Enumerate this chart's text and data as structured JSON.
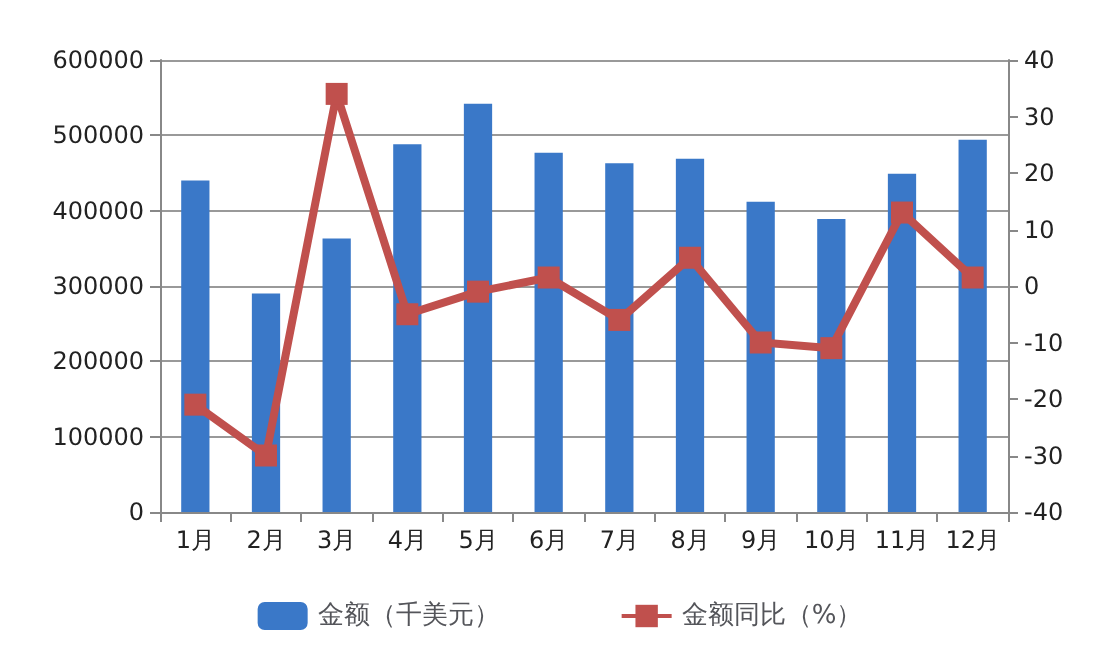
{
  "chart_data": {
    "type": "bar",
    "categories": [
      "1月",
      "2月",
      "3月",
      "4月",
      "5月",
      "6月",
      "7月",
      "8月",
      "9月",
      "10月",
      "11月",
      "12月"
    ],
    "series": [
      {
        "name": "金额（千美元）",
        "color": "#3a78c8",
        "values": [
          440000,
          290000,
          363000,
          488000,
          542000,
          477000,
          463000,
          469000,
          412000,
          389000,
          449000,
          494000
        ]
      },
      {
        "name": "金额同比（%）",
        "type": "line",
        "axis": "y2",
        "color": "#c0504d",
        "marker": "square",
        "values": [
          -21,
          -30,
          34,
          -5,
          -1,
          1.5,
          -6,
          5,
          -10,
          -11,
          13,
          1.5
        ]
      }
    ],
    "ylim": [
      0,
      600000
    ],
    "yticks": [
      0,
      100000,
      200000,
      300000,
      400000,
      500000,
      600000
    ],
    "y2lim": [
      -40,
      40
    ],
    "y2ticks": [
      -40,
      -30,
      -20,
      -10,
      0,
      10,
      20,
      30,
      40
    ],
    "grid": "y",
    "legend": "bottom"
  }
}
